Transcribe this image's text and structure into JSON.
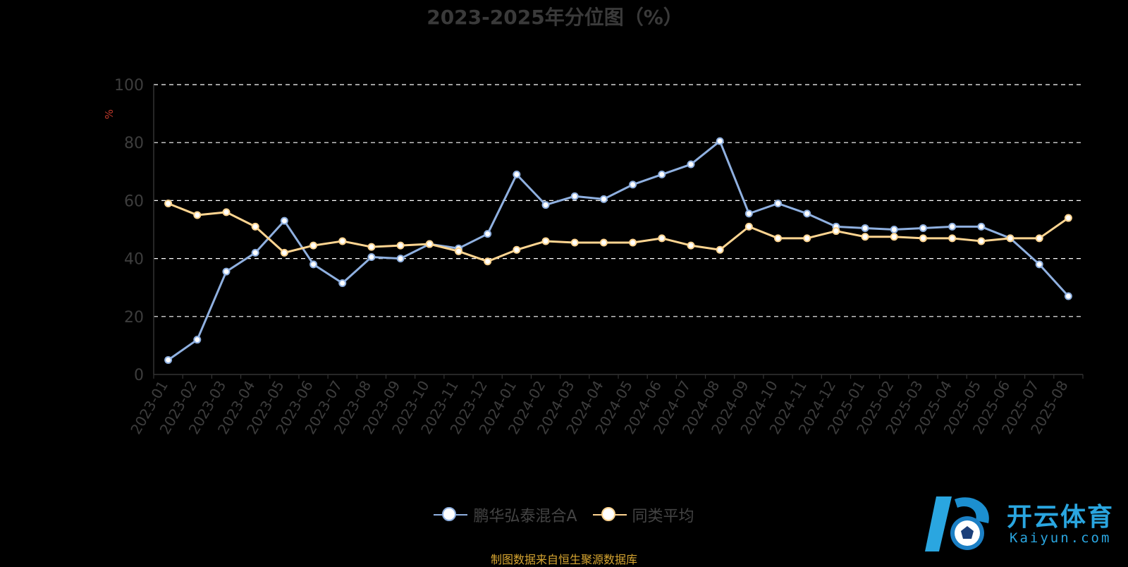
{
  "chart_data": {
    "type": "line",
    "title": "2023-2025年分位图（%）",
    "ylabel": "%",
    "ylim": [
      0,
      100
    ],
    "yticks": [
      0,
      20,
      40,
      60,
      80,
      100
    ],
    "grid": true,
    "legend_position": "bottom-center",
    "categories": [
      "2023-01",
      "2023-02",
      "2023-03",
      "2023-04",
      "2023-05",
      "2023-06",
      "2023-07",
      "2023-08",
      "2023-09",
      "2023-10",
      "2023-11",
      "2023-12",
      "2024-01",
      "2024-02",
      "2024-03",
      "2024-04",
      "2024-05",
      "2024-06",
      "2024-07",
      "2024-08",
      "2024-09",
      "2024-10",
      "2024-11",
      "2024-12",
      "2025-01",
      "2025-02",
      "2025-03",
      "2025-04",
      "2025-05",
      "2025-06",
      "2025-07",
      "2025-08"
    ],
    "series": [
      {
        "name": "鹏华弘泰混合A",
        "color": "#8fb0e0",
        "values": [
          5,
          12,
          35.5,
          42,
          53,
          38,
          31.5,
          40.5,
          40,
          45,
          43.5,
          48.5,
          69,
          58.5,
          61.5,
          60.5,
          65.5,
          69,
          72.5,
          80.5,
          55.5,
          59,
          55.5,
          51,
          50.5,
          50,
          50.5,
          51,
          51,
          47,
          38,
          27
        ]
      },
      {
        "name": "同类平均",
        "color": "#ffd591",
        "values": [
          59,
          55,
          56,
          51,
          42,
          44.5,
          46,
          44,
          44.5,
          45,
          42.5,
          39,
          43,
          46,
          45.5,
          45.5,
          45.5,
          47,
          44.5,
          43,
          51,
          47,
          47,
          49.5,
          47.5,
          47.5,
          47,
          47,
          46,
          47,
          47,
          54
        ]
      }
    ]
  },
  "source_note": "制图数据来自恒生聚源数据库",
  "logo": {
    "name": "开云体育",
    "domain": "Kaiyun.com"
  }
}
